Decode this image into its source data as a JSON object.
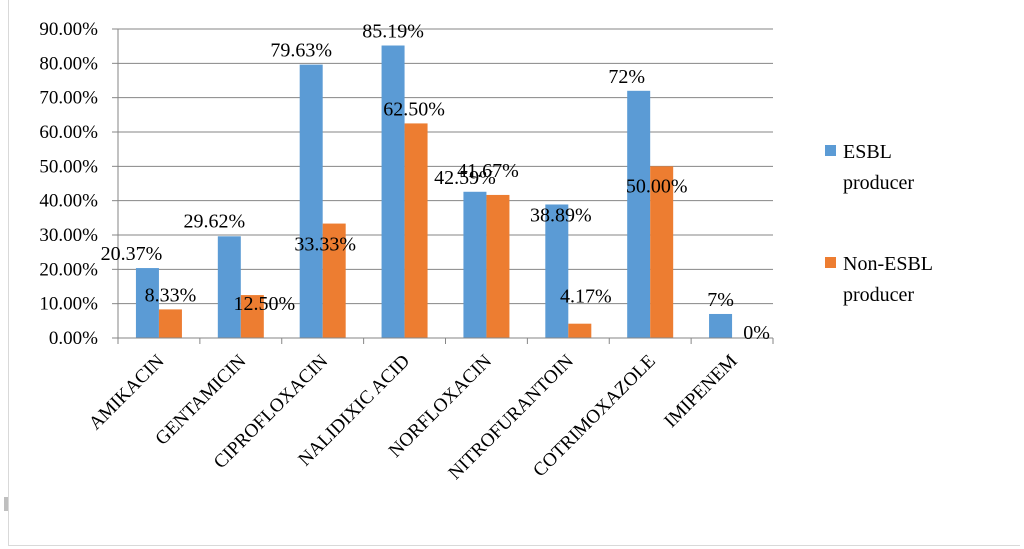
{
  "chart_data": {
    "type": "bar",
    "categories": [
      "AMIKACIN",
      "GENTAMICIN",
      "CIPROFLOXACIN",
      "NALIDIXIC  ACID",
      "NORFLOXACIN",
      "NITROFURANTOIN",
      "COTRIMOXAZOLE",
      "IMIPENEM"
    ],
    "series": [
      {
        "name": "ESBL producer",
        "color": "#5b9bd5",
        "values": [
          20.37,
          29.62,
          79.63,
          85.19,
          42.59,
          38.89,
          72,
          7
        ],
        "labels": [
          "20.37%",
          "29.62%",
          "79.63%",
          "85.19%",
          "42.59%",
          "38.89%",
          "72%",
          "7%"
        ]
      },
      {
        "name": "Non-ESBL producer",
        "color": "#ed7d31",
        "values": [
          8.33,
          12.5,
          33.33,
          62.5,
          41.67,
          4.17,
          50,
          0
        ],
        "labels": [
          "8.33%",
          "12.50%",
          "33.33%",
          "62.50%",
          "41.67%",
          "4.17%",
          "50.00%",
          "0%"
        ]
      }
    ],
    "yticks": [
      "0.00%",
      "10.00%",
      "20.00%",
      "30.00%",
      "40.00%",
      "50.00%",
      "60.00%",
      "70.00%",
      "80.00%",
      "90.00%"
    ],
    "ylim": [
      0,
      90
    ],
    "legend": [
      {
        "lines": [
          "ESBL",
          "producer"
        ]
      },
      {
        "lines": [
          "Non-ESBL",
          "producer"
        ]
      }
    ],
    "legend_position": "right",
    "grid": true,
    "title": "",
    "xlabel": "",
    "ylabel": ""
  }
}
